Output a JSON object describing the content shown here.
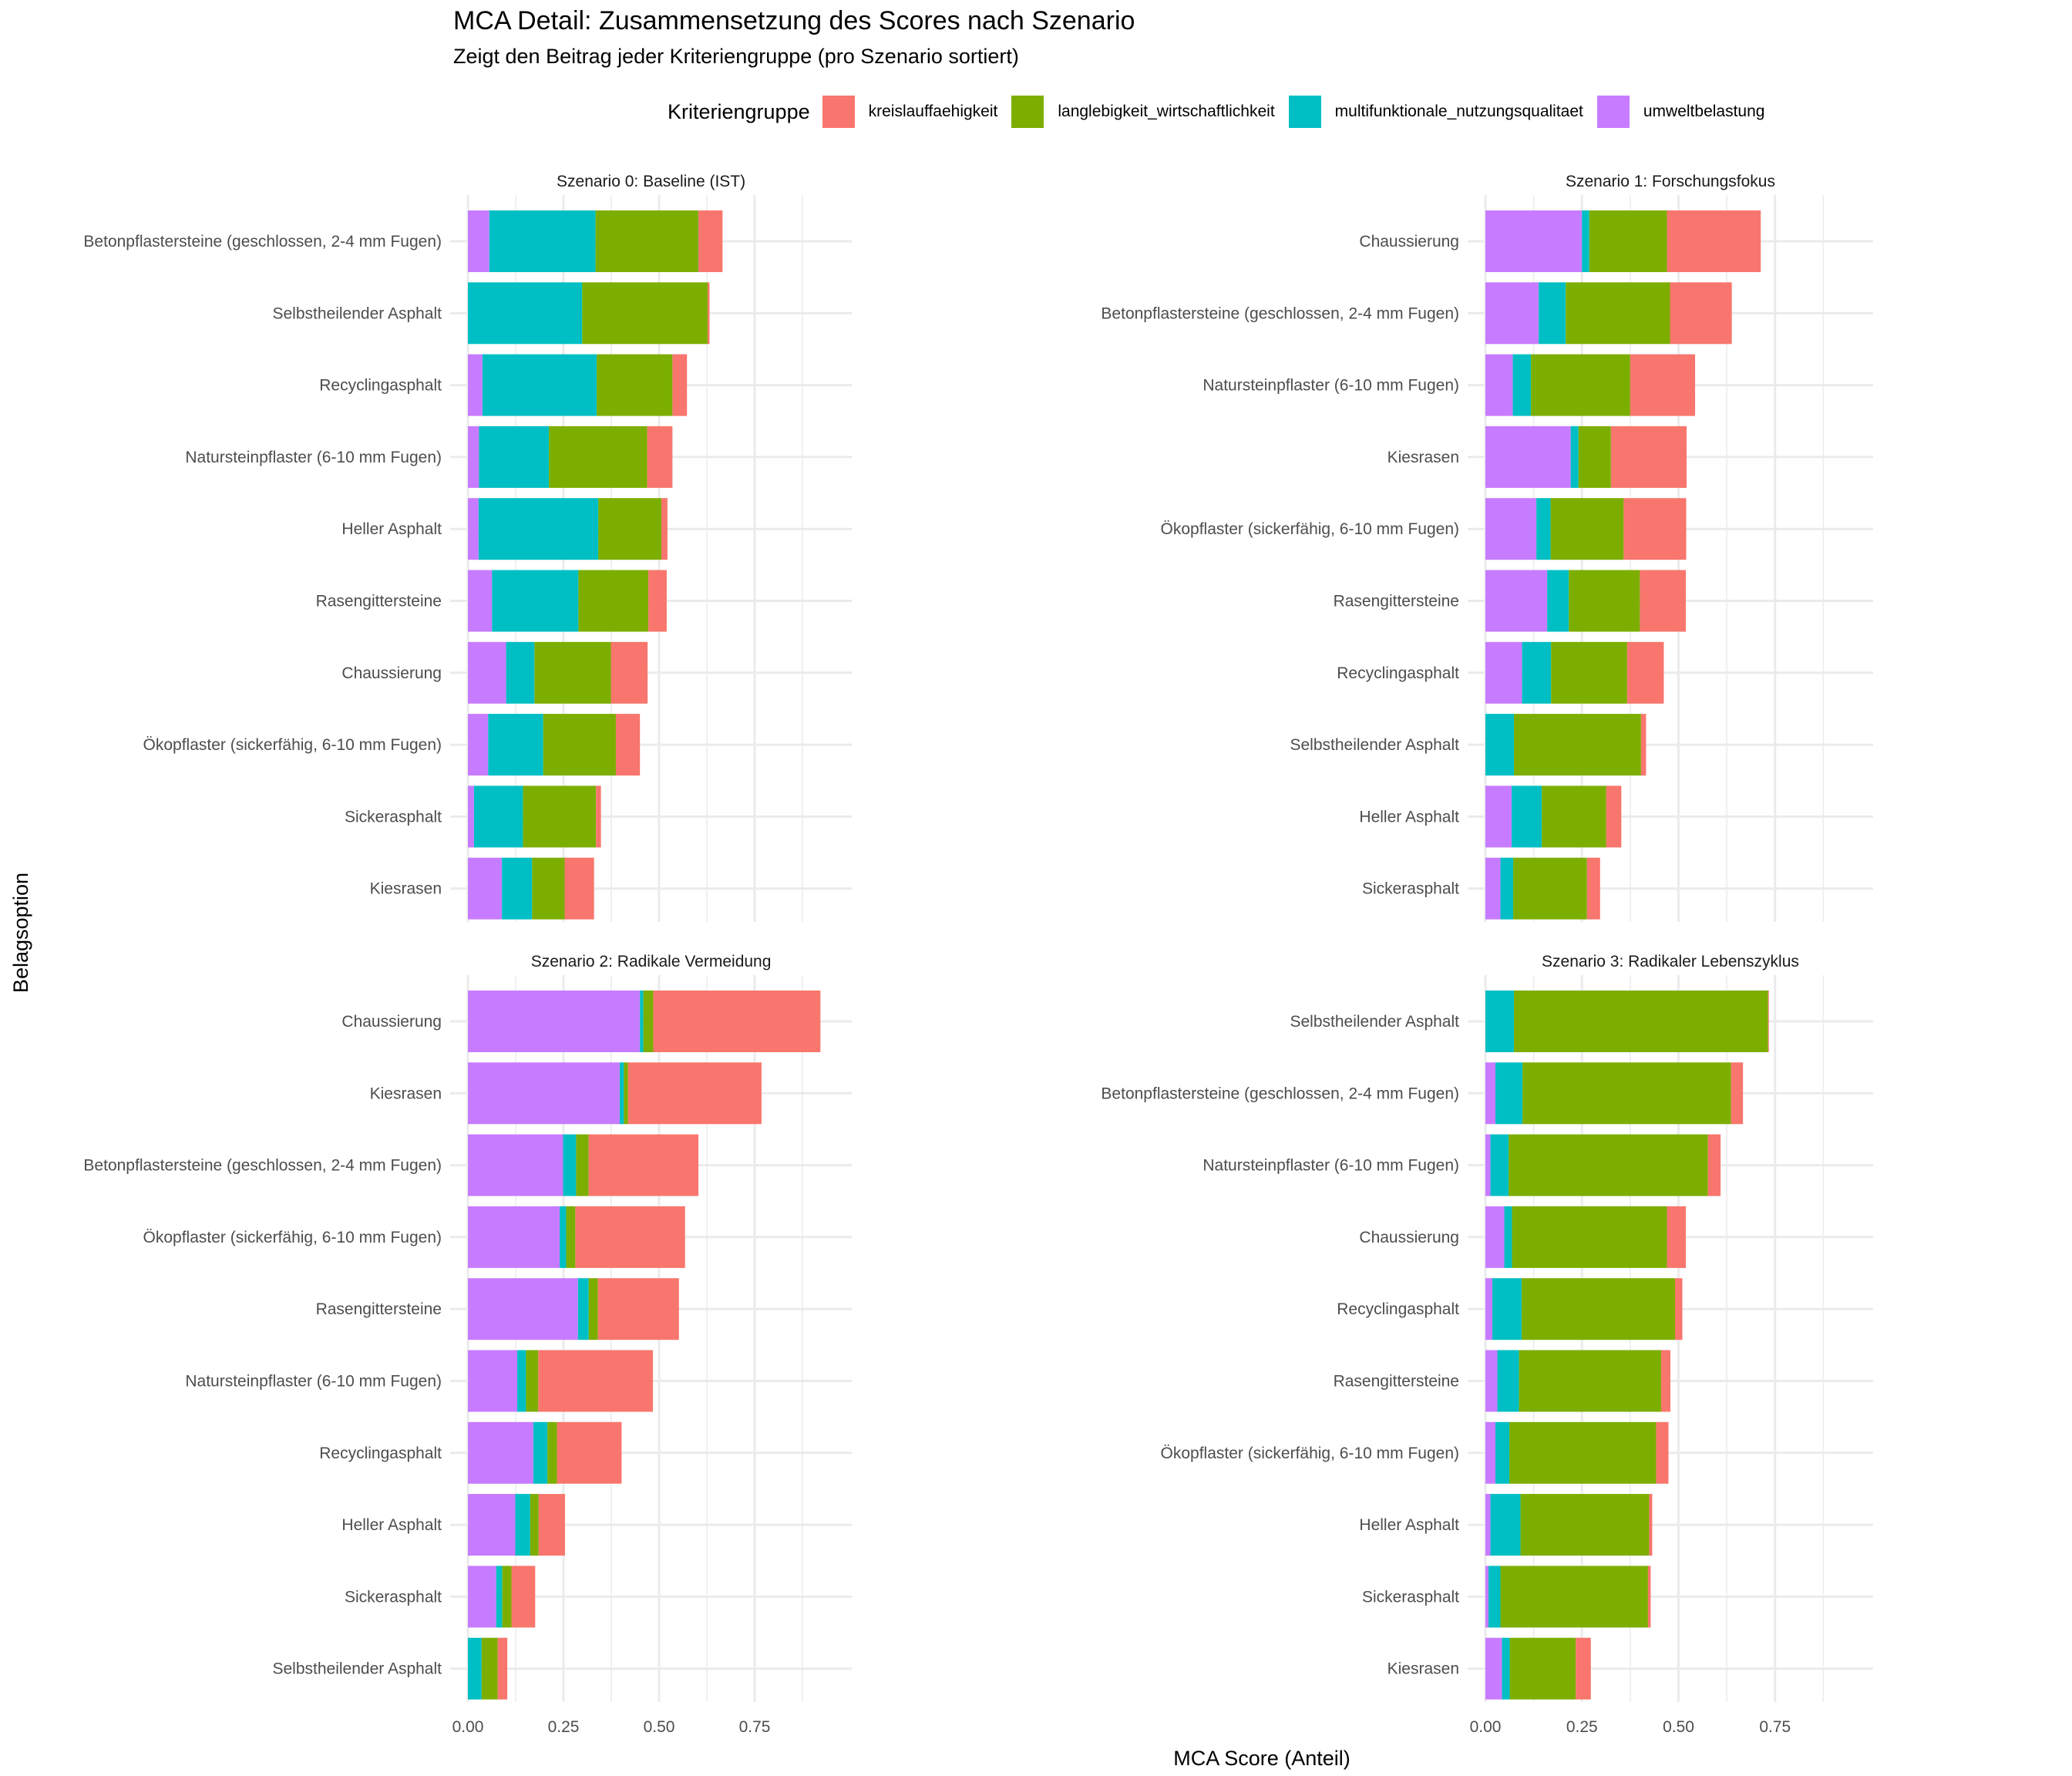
{
  "title": "MCA Detail: Zusammensetzung des Scores nach Szenario",
  "subtitle": "Zeigt den Beitrag jeder Kriteriengruppe (pro Szenario sortiert)",
  "legend": {
    "title": "Kriteriengruppe",
    "items": [
      {
        "key": "kreislauffaehigkeit",
        "label": "kreislauffaehigkeit",
        "color": "#F8766D"
      },
      {
        "key": "langlebigkeit_wirtschaftlichkeit",
        "label": "langlebigkeit_wirtschaftlichkeit",
        "color": "#7CAE00"
      },
      {
        "key": "multifunktionale_nutzungsqualitaet",
        "label": "multifunktionale_nutzungsqualitaet",
        "color": "#00BFC4"
      },
      {
        "key": "umweltbelastung",
        "label": "umweltbelastung",
        "color": "#C77CFF"
      }
    ]
  },
  "chart_data": {
    "type": "bar",
    "orientation": "horizontal",
    "stacked": true,
    "title": "MCA Detail: Zusammensetzung des Scores nach Szenario",
    "subtitle": "Zeigt den Beitrag jeder Kriteriengruppe (pro Szenario sortiert)",
    "xlabel": "MCA Score (Anteil)",
    "ylabel": "Belagsoption",
    "xlim": [
      0,
      0.96
    ],
    "xticks": [
      "0.00",
      "0.25",
      "0.50",
      "0.75"
    ],
    "xtick_values": [
      0,
      0.25,
      0.5,
      0.75
    ],
    "grid": true,
    "legend_position": "top",
    "stack_order": [
      "umweltbelastung",
      "multifunktionale_nutzungsqualitaet",
      "langlebigkeit_wirtschaftlichkeit",
      "kreislauffaehigkeit"
    ],
    "panels": [
      {
        "title": "Szenario 0: Baseline (IST)",
        "categories": [
          "Betonpflastersteine (geschlossen, 2-4 mm Fugen)",
          "Selbstheilender Asphalt",
          "Recyclingasphalt",
          "Natursteinpflaster (6-10 mm Fugen)",
          "Heller Asphalt",
          "Rasengittersteine",
          "Chaussierung",
          "Ökopflaster (sickerfähig, 6-10 mm Fugen)",
          "Sickerasphalt",
          "Kiesrasen"
        ],
        "series": [
          {
            "name": "umweltbelastung",
            "values": [
              0.056,
              0.0,
              0.038,
              0.029,
              0.028,
              0.063,
              0.1,
              0.053,
              0.016,
              0.089
            ]
          },
          {
            "name": "multifunktionale_nutzungsqualitaet",
            "values": [
              0.278,
              0.299,
              0.299,
              0.183,
              0.313,
              0.226,
              0.074,
              0.144,
              0.128,
              0.079
            ]
          },
          {
            "name": "langlebigkeit_wirtschaftlichkeit",
            "values": [
              0.269,
              0.328,
              0.198,
              0.257,
              0.165,
              0.183,
              0.2,
              0.19,
              0.191,
              0.085
            ]
          },
          {
            "name": "kreislauffaehigkeit",
            "values": [
              0.063,
              0.005,
              0.038,
              0.066,
              0.016,
              0.048,
              0.096,
              0.063,
              0.013,
              0.077
            ]
          }
        ]
      },
      {
        "title": "Szenario 1: Forschungsfokus",
        "categories": [
          "Chaussierung",
          "Betonpflastersteine (geschlossen, 2-4 mm Fugen)",
          "Natursteinpflaster (6-10 mm Fugen)",
          "Kiesrasen",
          "Ökopflaster (sickerfähig, 6-10 mm Fugen)",
          "Rasengittersteine",
          "Recyclingasphalt",
          "Selbstheilender Asphalt",
          "Heller Asphalt",
          "Sickerasphalt"
        ],
        "series": [
          {
            "name": "umweltbelastung",
            "values": [
              0.25,
              0.138,
              0.071,
              0.221,
              0.132,
              0.16,
              0.095,
              0.0,
              0.068,
              0.039
            ]
          },
          {
            "name": "multifunktionale_nutzungsqualitaet",
            "values": [
              0.019,
              0.07,
              0.047,
              0.02,
              0.037,
              0.056,
              0.075,
              0.074,
              0.078,
              0.033
            ]
          },
          {
            "name": "langlebigkeit_wirtschaftlichkeit",
            "values": [
              0.201,
              0.27,
              0.257,
              0.084,
              0.189,
              0.184,
              0.197,
              0.329,
              0.167,
              0.191
            ]
          },
          {
            "name": "kreislauffaehigkeit",
            "values": [
              0.243,
              0.16,
              0.168,
              0.196,
              0.162,
              0.119,
              0.095,
              0.013,
              0.039,
              0.034
            ]
          }
        ]
      },
      {
        "title": "Szenario 2: Radikale Vermeidung",
        "categories": [
          "Chaussierung",
          "Kiesrasen",
          "Betonpflastersteine (geschlossen, 2-4 mm Fugen)",
          "Ökopflaster (sickerfähig, 6-10 mm Fugen)",
          "Rasengittersteine",
          "Natursteinpflaster (6-10 mm Fugen)",
          "Recyclingasphalt",
          "Heller Asphalt",
          "Sickerasphalt",
          "Selbstheilender Asphalt"
        ],
        "series": [
          {
            "name": "umweltbelastung",
            "values": [
              0.45,
              0.397,
              0.249,
              0.24,
              0.288,
              0.129,
              0.171,
              0.124,
              0.074,
              0.0
            ]
          },
          {
            "name": "multifunktionale_nutzungsqualitaet",
            "values": [
              0.009,
              0.011,
              0.034,
              0.017,
              0.028,
              0.023,
              0.037,
              0.039,
              0.016,
              0.036
            ]
          },
          {
            "name": "langlebigkeit_wirtschaftlichkeit",
            "values": [
              0.026,
              0.011,
              0.033,
              0.024,
              0.024,
              0.032,
              0.025,
              0.022,
              0.024,
              0.042
            ]
          },
          {
            "name": "kreislauffaehigkeit",
            "values": [
              0.437,
              0.349,
              0.287,
              0.287,
              0.212,
              0.3,
              0.169,
              0.069,
              0.062,
              0.025
            ]
          }
        ]
      },
      {
        "title": "Szenario 3: Radikaler Lebenszyklus",
        "categories": [
          "Selbstheilender Asphalt",
          "Betonpflastersteine (geschlossen, 2-4 mm Fugen)",
          "Natursteinpflaster (6-10 mm Fugen)",
          "Chaussierung",
          "Recyclingasphalt",
          "Rasengittersteine",
          "Ökopflaster (sickerfähig, 6-10 mm Fugen)",
          "Heller Asphalt",
          "Sickerasphalt",
          "Kiesrasen"
        ],
        "series": [
          {
            "name": "umweltbelastung",
            "values": [
              0.0,
              0.026,
              0.013,
              0.049,
              0.018,
              0.031,
              0.026,
              0.013,
              0.008,
              0.043
            ]
          },
          {
            "name": "multifunktionale_nutzungsqualitaet",
            "values": [
              0.074,
              0.07,
              0.047,
              0.02,
              0.076,
              0.056,
              0.036,
              0.078,
              0.031,
              0.02
            ]
          },
          {
            "name": "langlebigkeit_wirtschaftlichkeit",
            "values": [
              0.658,
              0.54,
              0.516,
              0.401,
              0.397,
              0.368,
              0.38,
              0.333,
              0.382,
              0.171
            ]
          },
          {
            "name": "kreislauffaehigkeit",
            "values": [
              0.002,
              0.031,
              0.033,
              0.049,
              0.019,
              0.024,
              0.032,
              0.008,
              0.007,
              0.039
            ]
          }
        ]
      }
    ]
  }
}
